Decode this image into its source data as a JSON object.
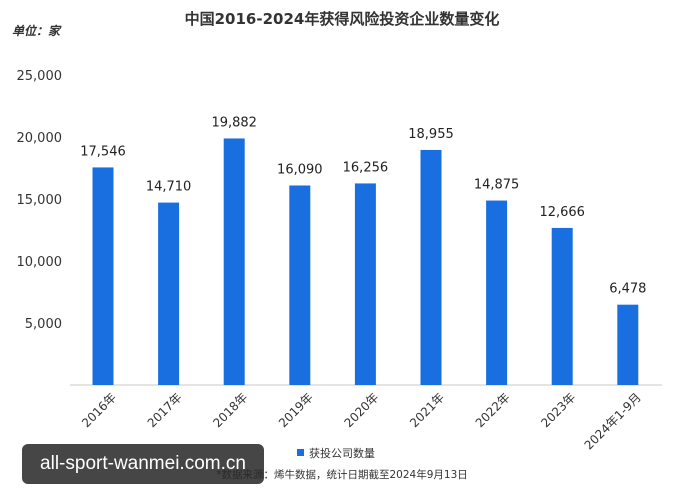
{
  "chart_data": {
    "type": "bar",
    "title": "中国2016-2024年获得风险投资企业数量变化",
    "unit_label": "单位：家",
    "categories": [
      "2016年",
      "2017年",
      "2018年",
      "2019年",
      "2020年",
      "2021年",
      "2022年",
      "2023年",
      "2024年1-9月"
    ],
    "series": [
      {
        "name": "获投公司数量",
        "values": [
          17546,
          14710,
          19882,
          16090,
          16256,
          18955,
          14875,
          12666,
          6478
        ],
        "value_labels": [
          "17,546",
          "14,710",
          "19,882",
          "16,090",
          "16,256",
          "18,955",
          "14,875",
          "12,666",
          "6,478"
        ]
      }
    ],
    "ylim": [
      0,
      25000
    ],
    "yticks": [
      5000,
      10000,
      15000,
      20000,
      25000
    ],
    "ytick_labels": [
      "5,000",
      "10,000",
      "15,000",
      "20,000",
      "25,000"
    ],
    "grid": false,
    "legend_position": "bottom",
    "colors": {
      "bar": "#1a6fe0",
      "axis": "#c8c8c8"
    },
    "source": "*数据来源：烯牛数据，统计日期截至2024年9月13日"
  },
  "watermark": "all-sport-wanmei.com.cn"
}
